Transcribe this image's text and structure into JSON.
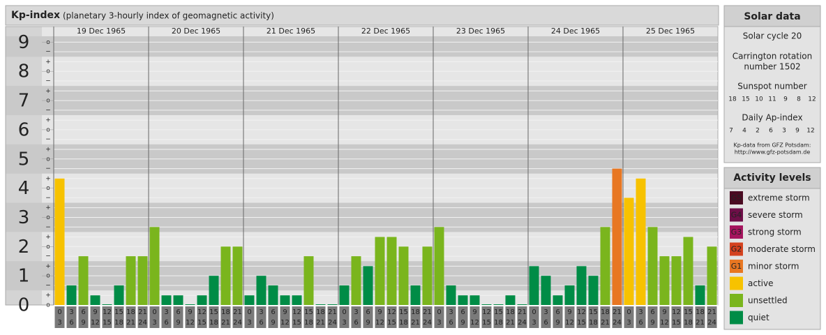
{
  "header": {
    "title": "Kp-index",
    "subtitle": "(planetary 3-hourly index of geomagnetic activity)"
  },
  "chart_data": {
    "type": "bar",
    "ylim": [
      0,
      9.2
    ],
    "yticks": [
      0,
      1,
      2,
      3,
      4,
      5,
      6,
      7,
      8,
      9
    ],
    "minor_yticks": [
      {
        "value": 0,
        "label": "o"
      },
      {
        "value": 0.33,
        "label": "+"
      },
      {
        "value": 0.67,
        "label": "−"
      },
      {
        "value": 1,
        "label": "o"
      },
      {
        "value": 1.33,
        "label": "+"
      },
      {
        "value": 1.67,
        "label": "−"
      },
      {
        "value": 2,
        "label": "o"
      },
      {
        "value": 2.33,
        "label": "+"
      },
      {
        "value": 2.67,
        "label": "−"
      },
      {
        "value": 3,
        "label": "o"
      },
      {
        "value": 3.33,
        "label": "+"
      },
      {
        "value": 3.67,
        "label": "−"
      },
      {
        "value": 4,
        "label": "o"
      },
      {
        "value": 4.33,
        "label": "+"
      },
      {
        "value": 4.67,
        "label": "−"
      },
      {
        "value": 5,
        "label": "o"
      },
      {
        "value": 5.33,
        "label": "+"
      },
      {
        "value": 5.67,
        "label": "−"
      },
      {
        "value": 6,
        "label": "o"
      },
      {
        "value": 6.33,
        "label": "+"
      },
      {
        "value": 6.67,
        "label": "−"
      },
      {
        "value": 7,
        "label": "o"
      },
      {
        "value": 7.33,
        "label": "+"
      },
      {
        "value": 7.67,
        "label": "−"
      },
      {
        "value": 8,
        "label": "o"
      },
      {
        "value": 8.33,
        "label": "+"
      },
      {
        "value": 8.67,
        "label": "−"
      },
      {
        "value": 9,
        "label": "o"
      }
    ],
    "hours": [
      [
        "0",
        "3"
      ],
      [
        "3",
        "6"
      ],
      [
        "6",
        "9"
      ],
      [
        "9",
        "12"
      ],
      [
        "12",
        "15"
      ],
      [
        "15",
        "18"
      ],
      [
        "18",
        "21"
      ],
      [
        "21",
        "24"
      ]
    ],
    "days": [
      {
        "date": "19 Dec 1965",
        "values": [
          4.33,
          0.67,
          1.67,
          0.33,
          0,
          0.67,
          1.67,
          1.67
        ],
        "colors": [
          "#f7c200",
          "#008c46",
          "#7ab51d",
          "#008c46",
          "#008c46",
          "#008c46",
          "#7ab51d",
          "#7ab51d"
        ]
      },
      {
        "date": "20 Dec 1965",
        "values": [
          2.67,
          0.33,
          0.33,
          0,
          0.33,
          1,
          2,
          2
        ],
        "colors": [
          "#7ab51d",
          "#008c46",
          "#008c46",
          "#008c46",
          "#008c46",
          "#008c46",
          "#7ab51d",
          "#7ab51d"
        ]
      },
      {
        "date": "21 Dec 1965",
        "values": [
          0.33,
          1,
          0.67,
          0.33,
          0.33,
          1.67,
          0,
          0
        ],
        "colors": [
          "#008c46",
          "#008c46",
          "#008c46",
          "#008c46",
          "#008c46",
          "#7ab51d",
          "#008c46",
          "#008c46"
        ]
      },
      {
        "date": "22 Dec 1965",
        "values": [
          0.67,
          1.67,
          1.33,
          2.33,
          2.33,
          2,
          0.67,
          2
        ],
        "colors": [
          "#008c46",
          "#7ab51d",
          "#008c46",
          "#7ab51d",
          "#7ab51d",
          "#7ab51d",
          "#008c46",
          "#7ab51d"
        ]
      },
      {
        "date": "23 Dec 1965",
        "values": [
          2.67,
          0.67,
          0.33,
          0.33,
          0,
          0,
          0.33,
          0
        ],
        "colors": [
          "#7ab51d",
          "#008c46",
          "#008c46",
          "#008c46",
          "#008c46",
          "#008c46",
          "#008c46",
          "#008c46"
        ]
      },
      {
        "date": "24 Dec 1965",
        "values": [
          1.33,
          1,
          0.33,
          0.67,
          1.33,
          1,
          2.67,
          4.67
        ],
        "colors": [
          "#008c46",
          "#008c46",
          "#008c46",
          "#008c46",
          "#008c46",
          "#008c46",
          "#7ab51d",
          "#e87722"
        ]
      },
      {
        "date": "25 Dec 1965",
        "values": [
          3.67,
          4.33,
          2.67,
          1.67,
          1.67,
          2.33,
          0.67,
          2
        ],
        "colors": [
          "#f7c200",
          "#f7c200",
          "#7ab51d",
          "#7ab51d",
          "#7ab51d",
          "#7ab51d",
          "#008c46",
          "#7ab51d"
        ]
      }
    ]
  },
  "solar_data": {
    "title": "Solar data",
    "cycle": "Solar cycle 20",
    "carrington": [
      "Carrington rotation",
      "number 1502"
    ],
    "sunspot_title": "Sunspot number",
    "sunspot": [
      18,
      15,
      10,
      11,
      9,
      8,
      12
    ],
    "ap_title": "Daily Ap-index",
    "ap": [
      7,
      4,
      2,
      6,
      3,
      9,
      12
    ],
    "source": [
      "Kp-data from GFZ Potsdam:",
      "http://www.gfz-potsdam.de"
    ]
  },
  "activity_levels": {
    "title": "Activity levels",
    "items": [
      {
        "code": "G5",
        "label": "extreme storm",
        "color": "#4a0b22"
      },
      {
        "code": "G4",
        "label": "severe storm",
        "color": "#6e0e48"
      },
      {
        "code": "G3",
        "label": "strong storm",
        "color": "#a5145e"
      },
      {
        "code": "G2",
        "label": "moderate storm",
        "color": "#d4421f"
      },
      {
        "code": "G1",
        "label": "minor storm",
        "color": "#e87722"
      },
      {
        "label": "active",
        "color": "#f7c200"
      },
      {
        "label": "unsettled",
        "color": "#7ab51d"
      },
      {
        "label": "quiet",
        "color": "#008c46"
      }
    ]
  }
}
